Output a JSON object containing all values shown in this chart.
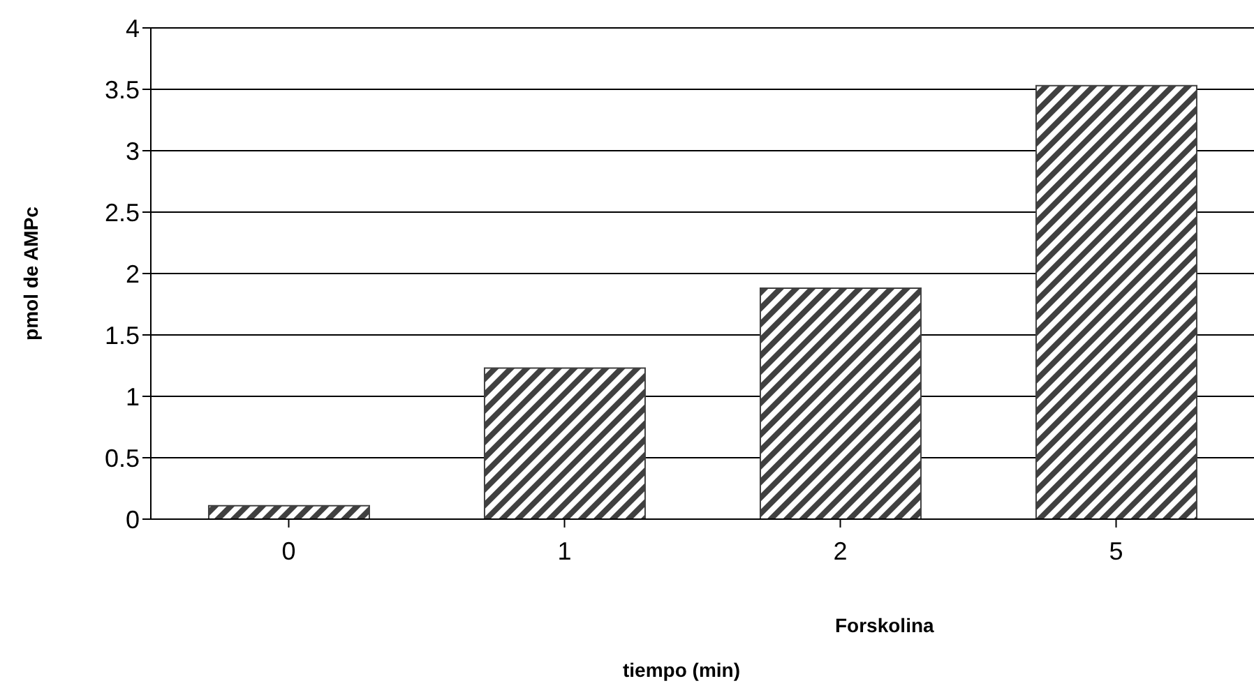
{
  "chart_data": {
    "type": "bar",
    "ylabel": "pmol de AMPc",
    "xlabel": "tiempo (min)",
    "annotations": [
      "Forskolina"
    ],
    "categories": [
      "0",
      "1",
      "2",
      "5"
    ],
    "values": [
      0.11,
      1.23,
      1.88,
      3.53
    ],
    "color": "#404040",
    "ylim": [
      0,
      4
    ],
    "yticks": [
      0,
      0.5,
      1,
      1.5,
      2,
      2.5,
      3,
      3.5,
      4
    ],
    "grid": "y",
    "legend": false
  }
}
